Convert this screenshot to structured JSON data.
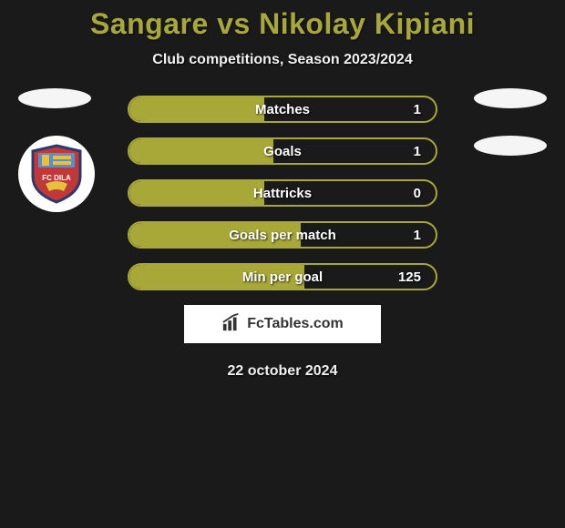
{
  "title": "Sangare vs Nikolay Kipiani",
  "subtitle": "Club competitions, Season 2023/2024",
  "colors": {
    "accent": "#a8a838",
    "background": "#1a1a1a",
    "text_light": "#f0f0f0",
    "white": "#ffffff",
    "logo_top": "#5b8fc7",
    "logo_bottom": "#c03838",
    "logo_border": "#2a3a6e"
  },
  "stats": [
    {
      "label": "Matches",
      "value": "1",
      "fill_pct": 44
    },
    {
      "label": "Goals",
      "value": "1",
      "fill_pct": 47
    },
    {
      "label": "Hattricks",
      "value": "0",
      "fill_pct": 44
    },
    {
      "label": "Goals per match",
      "value": "1",
      "fill_pct": 56
    },
    {
      "label": "Min per goal",
      "value": "125",
      "fill_pct": 57
    }
  ],
  "branding": "FcTables.com",
  "date": "22 october 2024",
  "left_ellipses": 1,
  "right_ellipses": 2,
  "club_name": "FC DILA"
}
